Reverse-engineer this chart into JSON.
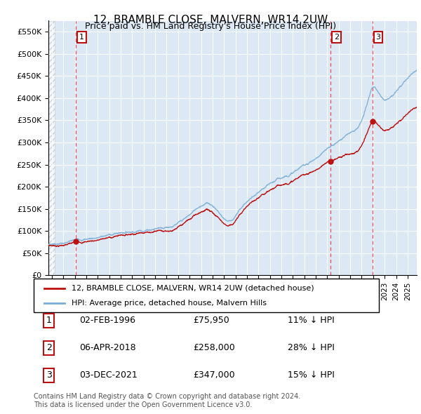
{
  "title": "12, BRAMBLE CLOSE, MALVERN, WR14 2UW",
  "subtitle": "Price paid vs. HM Land Registry's House Price Index (HPI)",
  "footer": "Contains HM Land Registry data © Crown copyright and database right 2024.\nThis data is licensed under the Open Government Licence v3.0.",
  "legend_line1": "12, BRAMBLE CLOSE, MALVERN, WR14 2UW (detached house)",
  "legend_line2": "HPI: Average price, detached house, Malvern Hills",
  "transactions": [
    {
      "label": "1",
      "date": "02-FEB-1996",
      "price": 75950,
      "pct": "11% ↓ HPI",
      "x_year": 1996.09
    },
    {
      "label": "2",
      "date": "06-APR-2018",
      "price": 258000,
      "pct": "28% ↓ HPI",
      "x_year": 2018.27
    },
    {
      "label": "3",
      "date": "03-DEC-2021",
      "price": 347000,
      "pct": "15% ↓ HPI",
      "x_year": 2021.92
    }
  ],
  "hpi_color": "#7aadd4",
  "price_color": "#bb1111",
  "vline_color": "#ee3333",
  "bg_color": "#dce9f5",
  "ylim": [
    0,
    575000
  ],
  "xlim_start": 1993.7,
  "xlim_end": 2025.8,
  "yticks": [
    0,
    50000,
    100000,
    150000,
    200000,
    250000,
    300000,
    350000,
    400000,
    450000,
    500000,
    550000
  ],
  "ytick_labels": [
    "£0",
    "£50K",
    "£100K",
    "£150K",
    "£200K",
    "£250K",
    "£300K",
    "£350K",
    "£400K",
    "£450K",
    "£500K",
    "£550K"
  ]
}
